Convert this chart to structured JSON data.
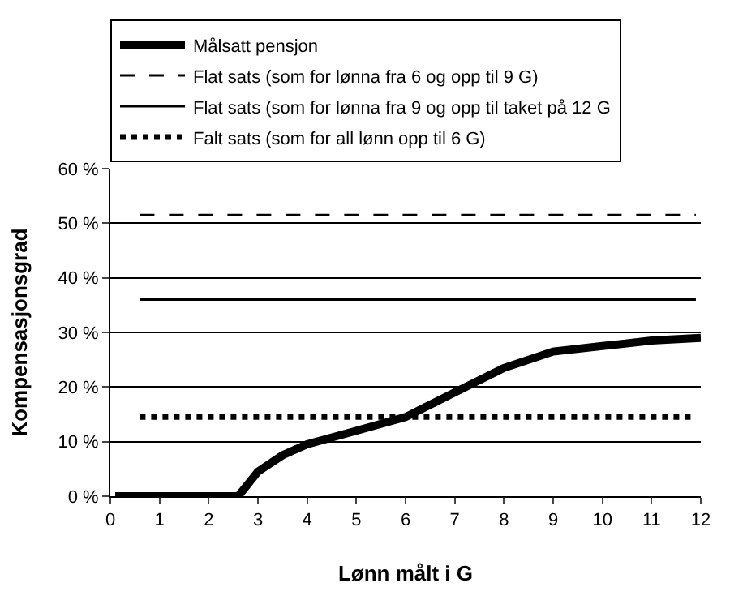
{
  "chart_data": {
    "type": "line",
    "xlabel": "Lønn målt i G",
    "ylabel": "Kompensasjonsgrad",
    "xlim": [
      0,
      12
    ],
    "xticks": [
      0,
      1,
      2,
      3,
      4,
      5,
      6,
      7,
      8,
      9,
      10,
      11,
      12
    ],
    "ylim": [
      0,
      60
    ],
    "yticks": [
      {
        "value": 0,
        "label": "0 %"
      },
      {
        "value": 10,
        "label": "10 %"
      },
      {
        "value": 20,
        "label": "20 %"
      },
      {
        "value": 30,
        "label": "30 %"
      },
      {
        "value": 40,
        "label": "40 %"
      },
      {
        "value": 50,
        "label": "50 %"
      },
      {
        "value": 60,
        "label": "60 %"
      }
    ],
    "grid": "y",
    "legend": "top",
    "marker": "none",
    "series": [
      {
        "name": "Målsatt pensjon",
        "color": "#000000",
        "line_style": "solid",
        "x": [
          0.1,
          2.6,
          3,
          3.5,
          4,
          5,
          6,
          7,
          8,
          9,
          10,
          11,
          12
        ],
        "values": [
          0,
          0,
          4.5,
          7.5,
          9.5,
          12,
          14.5,
          19,
          23.5,
          26.5,
          27.5,
          28.5,
          29
        ]
      },
      {
        "name": "Flat sats (som for lønna fra 6 og opp til 9 G)",
        "color": "#000000",
        "line_style": "dashed",
        "x": [
          0.6,
          11.9
        ],
        "values": [
          51.5,
          51.5
        ]
      },
      {
        "name": "Flat sats (som for lønna fra 9 og opp til taket på 12 G",
        "color": "#000000",
        "line_style": "solid",
        "x": [
          0.6,
          11.9
        ],
        "values": [
          36,
          36
        ]
      },
      {
        "name": "Falt sats (som for all lønn opp til 6 G)",
        "color": "#000000",
        "line_style": "dotted",
        "x": [
          0.6,
          11.9
        ],
        "values": [
          14.5,
          14.5
        ]
      }
    ]
  }
}
